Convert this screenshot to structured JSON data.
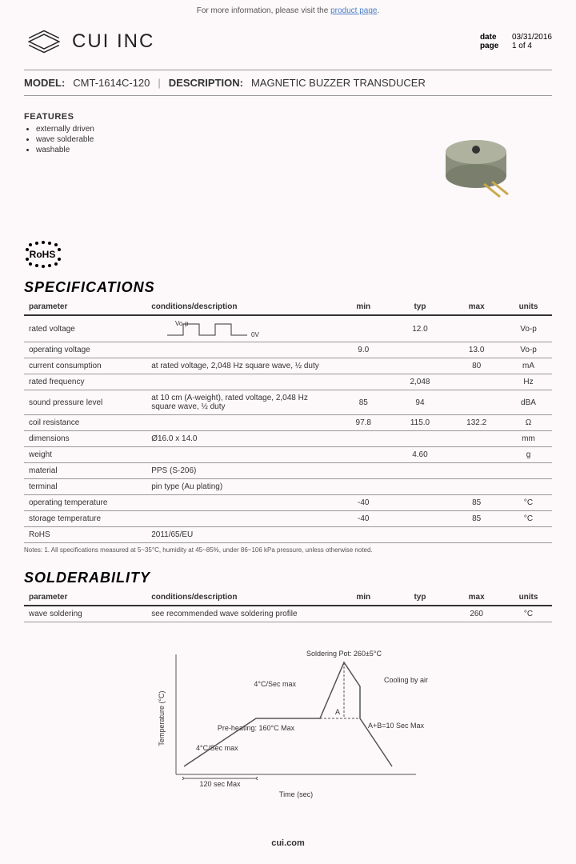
{
  "top_banner": {
    "prefix": "For more information, please visit the ",
    "link_text": "product page"
  },
  "logo_text": "CUI INC",
  "meta": {
    "date_label": "date",
    "date_value": "03/31/2016",
    "page_label": "page",
    "page_value": "1 of 4"
  },
  "model_bar": {
    "model_label": "MODEL:",
    "model_value": "CMT-1614C-120",
    "desc_label": "DESCRIPTION:",
    "desc_value": "MAGNETIC BUZZER TRANSDUCER"
  },
  "features": {
    "title": "FEATURES",
    "items": [
      "externally driven",
      "wave solderable",
      "washable"
    ]
  },
  "rohs_label": "RoHS",
  "spec_section_title": "SPECIFICATIONS",
  "spec_headers": {
    "param": "parameter",
    "cond": "conditions/description",
    "min": "min",
    "typ": "typ",
    "max": "max",
    "units": "units"
  },
  "spec_rows": [
    {
      "param": "rated voltage",
      "cond_wave": true,
      "wave_hi": "Vo-p",
      "wave_lo": "0V",
      "min": "",
      "typ": "12.0",
      "max": "",
      "units": "Vo-p"
    },
    {
      "param": "operating voltage",
      "cond": "",
      "min": "9.0",
      "typ": "",
      "max": "13.0",
      "units": "Vo-p"
    },
    {
      "param": "current consumption",
      "cond": "at rated voltage, 2,048 Hz square wave, ½ duty",
      "min": "",
      "typ": "",
      "max": "80",
      "units": "mA"
    },
    {
      "param": "rated frequency",
      "cond": "",
      "min": "",
      "typ": "2,048",
      "max": "",
      "units": "Hz"
    },
    {
      "param": "sound pressure level",
      "cond": "at 10 cm (A-weight), rated voltage, 2,048 Hz square wave, ½ duty",
      "min": "85",
      "typ": "94",
      "max": "",
      "units": "dBA"
    },
    {
      "param": "coil resistance",
      "cond": "",
      "min": "97.8",
      "typ": "115.0",
      "max": "132.2",
      "units": "Ω"
    },
    {
      "param": "dimensions",
      "cond": "Ø16.0 x 14.0",
      "min": "",
      "typ": "",
      "max": "",
      "units": "mm"
    },
    {
      "param": "weight",
      "cond": "",
      "min": "",
      "typ": "4.60",
      "max": "",
      "units": "g"
    },
    {
      "param": "material",
      "cond": "PPS (S-206)",
      "min": "",
      "typ": "",
      "max": "",
      "units": ""
    },
    {
      "param": "terminal",
      "cond": "pin type (Au plating)",
      "min": "",
      "typ": "",
      "max": "",
      "units": ""
    },
    {
      "param": "operating temperature",
      "cond": "",
      "min": "-40",
      "typ": "",
      "max": "85",
      "units": "°C"
    },
    {
      "param": "storage temperature",
      "cond": "",
      "min": "-40",
      "typ": "",
      "max": "85",
      "units": "°C"
    },
    {
      "param": "RoHS",
      "cond": "2011/65/EU",
      "min": "",
      "typ": "",
      "max": "",
      "units": ""
    }
  ],
  "spec_notes": "Notes:     1. All specifications measured at 5~35°C, humidity at 45~85%, under 86~106 kPa pressure, unless otherwise noted.",
  "solder_section_title": "SOLDERABILITY",
  "solder_rows": [
    {
      "param": "wave soldering",
      "cond": "see recommended wave soldering profile",
      "min": "",
      "typ": "",
      "max": "260",
      "units": "°C"
    }
  ],
  "profile": {
    "soldering_pot": "Soldering Pot: 260±5°C",
    "ramp_rate": "4°C/Sec max",
    "cooling": "Cooling by air",
    "preheat": "Pre-heating: 160°C Max",
    "preheat_ramp": "4°C/Sec max",
    "ab_label": "A",
    "ab_text": "A+B=10 Sec Max",
    "preheat_time": "120 sec Max",
    "y_axis": "Temperature (°C)",
    "x_axis": "Time (sec)",
    "line_color": "#555",
    "text_color": "#333",
    "background": "#fdf8fa"
  },
  "product_colors": {
    "body": "#9fa391",
    "pin": "#c9a94a"
  },
  "footer_text": "cui.com"
}
